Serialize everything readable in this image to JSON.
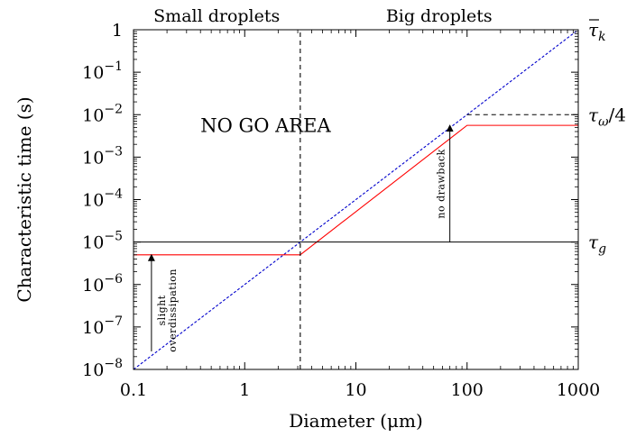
{
  "chart_data": {
    "type": "line",
    "title": "",
    "xlabel": "Diameter (μm)",
    "ylabel": "Characteristic time (s)",
    "xscale": "log",
    "yscale": "log",
    "xlim": [
      0.1,
      1000
    ],
    "ylim": [
      1e-08,
      1
    ],
    "grid": false,
    "legend": "none",
    "x_ticks": [
      {
        "value": 0.1,
        "label": "0.1"
      },
      {
        "value": 1,
        "label": "1"
      },
      {
        "value": 10,
        "label": "10"
      },
      {
        "value": 100,
        "label": "100"
      },
      {
        "value": 1000,
        "label": "1000"
      }
    ],
    "y_ticks": [
      {
        "value": 1e-08,
        "base": "10",
        "exp": "−8"
      },
      {
        "value": 1e-07,
        "base": "10",
        "exp": "−7"
      },
      {
        "value": 1e-06,
        "base": "10",
        "exp": "−6"
      },
      {
        "value": 1e-05,
        "base": "10",
        "exp": "−5"
      },
      {
        "value": 0.0001,
        "base": "10",
        "exp": "−4"
      },
      {
        "value": 0.001,
        "base": "10",
        "exp": "−3"
      },
      {
        "value": 0.01,
        "base": "10",
        "exp": "−2"
      },
      {
        "value": 0.1,
        "base": "10",
        "exp": "−1"
      },
      {
        "value": 1,
        "base": "1",
        "exp": ""
      }
    ],
    "series": [
      {
        "style": "dashed",
        "color": "#0000cc",
        "x": [
          0.1,
          1000
        ],
        "y": [
          1e-08,
          1
        ]
      },
      {
        "style": "solid",
        "color": "#ff0000",
        "x": [
          0.1,
          3.16,
          100,
          1000
        ],
        "y": [
          5e-06,
          5e-06,
          0.0056,
          0.0056
        ]
      },
      {
        "style": "solid",
        "color": "#000000",
        "x": [
          0.1,
          1000
        ],
        "y": [
          1e-05,
          1e-05
        ]
      },
      {
        "style": "dashed",
        "color": "#000000",
        "x": [
          100,
          1000
        ],
        "y": [
          0.01,
          0.01
        ]
      },
      {
        "style": "dashed",
        "color": "#000000",
        "x": [
          3.16,
          3.16
        ],
        "y": [
          1e-08,
          1
        ]
      }
    ],
    "regions": [
      {
        "text": "Small droplets",
        "x_center": 0.56
      },
      {
        "text": "Big droplets",
        "x_center": 56
      }
    ],
    "annotations": [
      {
        "text": "NO GO AREA",
        "x": 0.4,
        "y": 0.007
      },
      {
        "text": "no drawback",
        "x": 70,
        "y_from": 1e-05,
        "y_to": 0.0056
      },
      {
        "text1": "slight",
        "text2": "overdissipation",
        "x": 0.145,
        "y_from": 1e-08,
        "y_to": 5e-06
      }
    ],
    "right_labels": [
      {
        "y": 1,
        "text": "τ̄k",
        "main": "τ",
        "sub": "k",
        "bar": true
      },
      {
        "y": 0.01,
        "text": "τω/4",
        "main": "τ",
        "sub": "ω",
        "suffix": "/4",
        "bar": false
      },
      {
        "y": 1e-05,
        "text": "τg",
        "main": "τ",
        "sub": "g",
        "bar": false
      }
    ]
  }
}
